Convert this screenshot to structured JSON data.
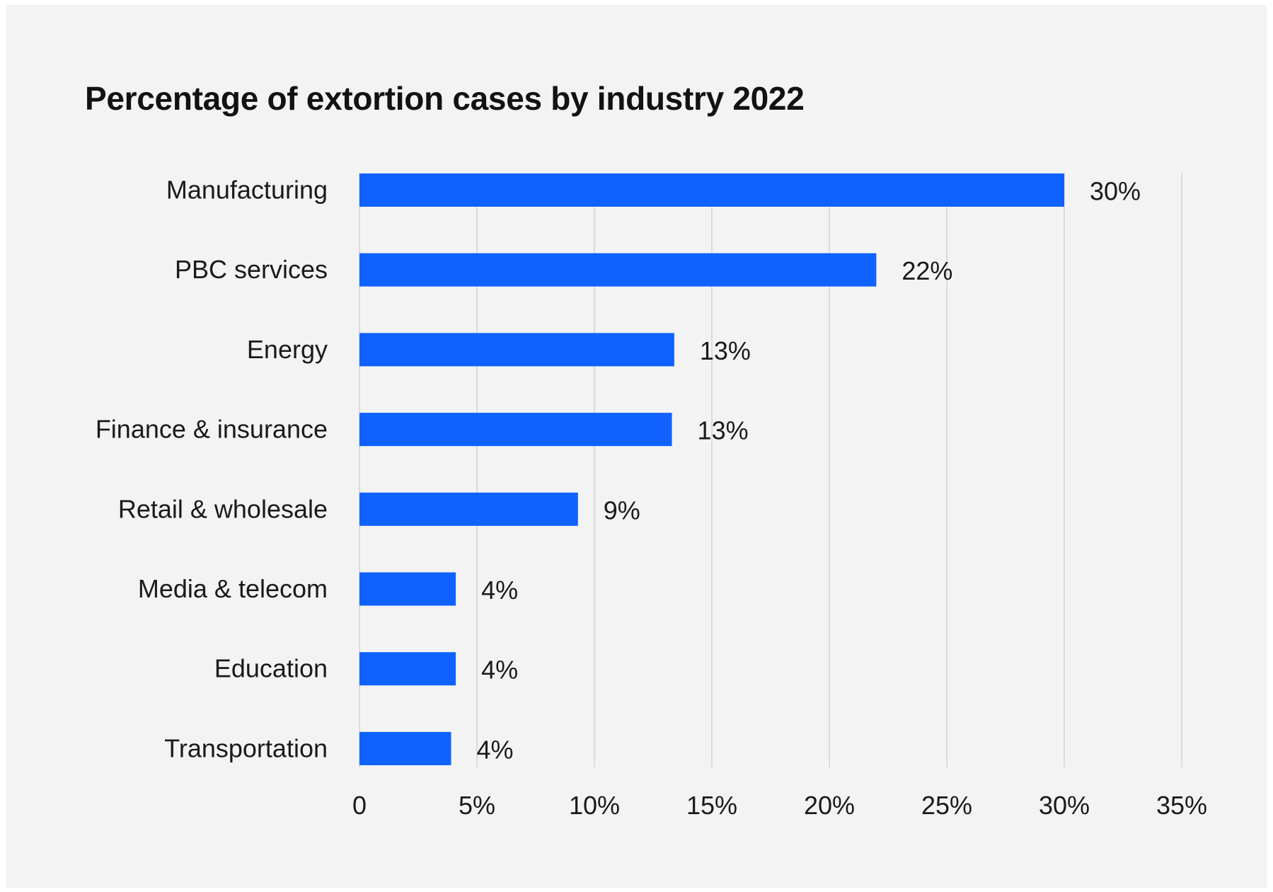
{
  "chart_data": {
    "type": "bar",
    "orientation": "horizontal",
    "title": "Percentage of extortion cases by industry 2022",
    "xlabel": "",
    "ylabel": "",
    "categories": [
      "Manufacturing",
      "PBC services",
      "Energy",
      "Finance & insurance",
      "Retail & wholesale",
      "Media & telecom",
      "Education",
      "Transportation"
    ],
    "values": [
      30,
      22,
      13.4,
      13.3,
      9.3,
      4.1,
      4.1,
      3.9
    ],
    "value_labels": [
      "30%",
      "22%",
      "13%",
      "13%",
      "9%",
      "4%",
      "4%",
      "4%"
    ],
    "xlim": [
      0,
      35
    ],
    "x_ticks": [
      0,
      5,
      10,
      15,
      20,
      25,
      30,
      35
    ],
    "x_tick_labels": [
      "0",
      "5%",
      "10%",
      "15%",
      "20%",
      "25%",
      "30%",
      "35%"
    ],
    "grid": "vertical",
    "bar_color": "#0f62fe",
    "grid_color": "#dcdcdc",
    "background_color": "#f3f3f3"
  }
}
